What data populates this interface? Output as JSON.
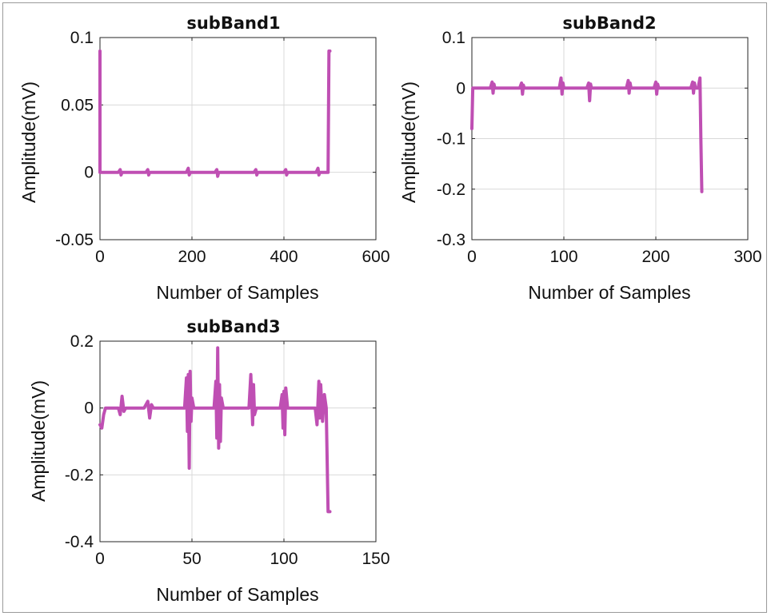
{
  "colors": {
    "series": "#bf4fb3",
    "axis": "#262626",
    "grid": "#d9d9d9"
  },
  "chart_data": [
    {
      "type": "line",
      "title": "subBand1",
      "xlabel": "Number of Samples",
      "ylabel": "Amplitude(mV)",
      "xlim": [
        0,
        600
      ],
      "ylim": [
        -0.05,
        0.1
      ],
      "xticks": [
        0,
        200,
        400,
        600
      ],
      "xtick_labels": [
        "0",
        "200",
        "400",
        "600"
      ],
      "yticks": [
        -0.05,
        0,
        0.05,
        0.1
      ],
      "ytick_labels": [
        "-0.05",
        "0",
        "0.05",
        "0.1"
      ],
      "grid": true,
      "series": [
        {
          "x": [
            0,
            0,
            2,
            4,
            40,
            44,
            46,
            48,
            100,
            104,
            106,
            108,
            188,
            192,
            194,
            196,
            250,
            254,
            256,
            258,
            335,
            339,
            341,
            343,
            400,
            404,
            406,
            408,
            470,
            474,
            476,
            478,
            494,
            496,
            498,
            500
          ],
          "y": [
            0.09,
            0.0,
            0.0,
            0.0,
            0.0,
            0.002,
            -0.002,
            0.0,
            0.0,
            0.002,
            -0.002,
            0.0,
            0.0,
            0.003,
            -0.002,
            0.0,
            0.0,
            0.002,
            -0.003,
            0.0,
            0.0,
            0.002,
            -0.002,
            0.0,
            0.0,
            0.002,
            -0.002,
            0.0,
            0.0,
            0.003,
            -0.002,
            0.0,
            0.0,
            0.0,
            0.09,
            0.09
          ]
        }
      ]
    },
    {
      "type": "line",
      "title": "subBand2",
      "xlabel": "Number of Samples",
      "ylabel": "Amplitude(mV)",
      "xlim": [
        0,
        300
      ],
      "ylim": [
        -0.3,
        0.1
      ],
      "xticks": [
        0,
        100,
        200,
        300
      ],
      "xtick_labels": [
        "0",
        "100",
        "200",
        "300"
      ],
      "yticks": [
        -0.3,
        -0.2,
        -0.1,
        0,
        0.1
      ],
      "ytick_labels": [
        "-0.3",
        "-0.2",
        "-0.1",
        "0",
        "0.1"
      ],
      "grid": true,
      "series": [
        {
          "x": [
            0,
            1,
            4,
            20,
            22,
            23,
            24,
            25,
            52,
            54,
            55,
            56,
            57,
            95,
            97,
            98,
            99,
            100,
            125,
            127,
            128,
            129,
            130,
            168,
            170,
            171,
            172,
            173,
            198,
            200,
            201,
            202,
            203,
            238,
            240,
            241,
            242,
            243,
            246,
            248,
            249,
            250
          ],
          "y": [
            -0.08,
            0.0,
            0.0,
            0.0,
            0.012,
            -0.01,
            0.008,
            0.0,
            0.0,
            0.01,
            -0.012,
            0.006,
            0.0,
            0.0,
            0.02,
            -0.012,
            0.01,
            0.0,
            0.0,
            0.01,
            -0.025,
            0.008,
            0.0,
            0.0,
            0.015,
            -0.01,
            0.01,
            0.0,
            0.0,
            0.012,
            -0.012,
            0.008,
            0.0,
            0.0,
            0.012,
            -0.01,
            0.01,
            0.0,
            0.0,
            0.02,
            -0.1,
            -0.205
          ]
        }
      ]
    },
    {
      "type": "line",
      "title": "subBand3",
      "xlabel": "Number of Samples",
      "ylabel": "Amplitude(mV)",
      "xlim": [
        0,
        150
      ],
      "ylim": [
        -0.4,
        0.2
      ],
      "xticks": [
        0,
        50,
        100,
        150
      ],
      "xtick_labels": [
        "0",
        "50",
        "100",
        "150"
      ],
      "yticks": [
        -0.4,
        -0.2,
        0,
        0.2
      ],
      "ytick_labels": [
        "-0.4",
        "-0.2",
        "0",
        "0.2"
      ],
      "grid": true,
      "series": [
        {
          "x": [
            0,
            1,
            2,
            3,
            10,
            11,
            12,
            13,
            14,
            24,
            26,
            27,
            28,
            29,
            46,
            47,
            47.5,
            48,
            48.5,
            49,
            49.5,
            50,
            51,
            62,
            63,
            63.5,
            64,
            64.5,
            65,
            65.5,
            66,
            67,
            81,
            82,
            83,
            83.5,
            84,
            85,
            98,
            99,
            99.5,
            100,
            100.5,
            101,
            102,
            117,
            118,
            119,
            119.5,
            120,
            121,
            122,
            123,
            124,
            125
          ],
          "y": [
            -0.05,
            -0.06,
            -0.02,
            0.0,
            0.0,
            -0.02,
            0.035,
            -0.01,
            0.0,
            0.0,
            0.02,
            -0.03,
            0.01,
            0.0,
            0.0,
            0.09,
            -0.07,
            0.1,
            -0.18,
            0.11,
            -0.04,
            0.03,
            0.0,
            0.0,
            0.08,
            -0.09,
            0.18,
            -0.12,
            0.07,
            -0.1,
            0.03,
            0.0,
            0.0,
            0.1,
            -0.05,
            0.07,
            -0.02,
            0.0,
            0.0,
            0.04,
            -0.06,
            0.05,
            -0.08,
            0.06,
            0.0,
            0.0,
            -0.05,
            0.08,
            -0.03,
            0.07,
            -0.04,
            0.04,
            0.0,
            -0.31,
            -0.31
          ]
        }
      ]
    }
  ]
}
